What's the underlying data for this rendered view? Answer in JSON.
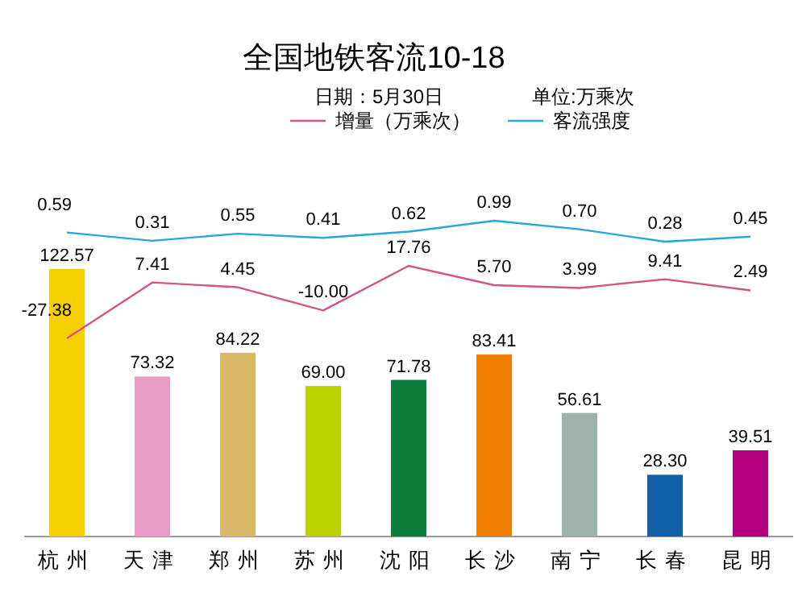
{
  "chart_data": [
    {
      "type": "bar",
      "annotations": [
        "日期：5月30日",
        "单位:万乘次"
      ],
      "categories": [
        "杭州",
        "天津",
        "郑州",
        "苏州",
        "沈阳",
        "长沙",
        "南宁",
        "长春",
        "昆明"
      ],
      "values": [
        122.57,
        73.32,
        84.22,
        69.0,
        71.78,
        83.41,
        56.61,
        28.3,
        39.51
      ],
      "value_labels": [
        "122.57",
        "73.32",
        "84.22",
        "69.00",
        "71.78",
        "83.41",
        "56.61",
        "28.30",
        "39.51"
      ],
      "colors": [
        "#f5d000",
        "#e99cc3",
        "#d9b86a",
        "#bcd200",
        "#0a7e3a",
        "#ee7d00",
        "#9fb1ad",
        "#1060a8",
        "#b5007e"
      ]
    },
    {
      "type": "line",
      "categories": [
        null,
        null,
        null,
        null,
        null,
        null,
        null,
        null,
        null
      ],
      "legend": "top",
      "series": [
        {
          "name": "增量（万乘次）",
          "color": "#d0558a",
          "values": [
            -27.38,
            7.41,
            4.45,
            -10.0,
            17.76,
            5.7,
            3.99,
            9.41,
            2.49
          ],
          "value_labels": [
            "-27.38",
            "7.41",
            "4.45",
            "-10.00",
            "17.76",
            "5.70",
            "3.99",
            "9.41",
            "2.49"
          ]
        }
      ]
    },
    {
      "type": "line",
      "title": "全国地铁客流10-18",
      "categories": [
        null,
        null,
        null,
        null,
        null,
        null,
        null,
        null,
        null
      ],
      "legend": "top",
      "series": [
        {
          "name": "客流强度",
          "color": "#2aa7d8",
          "values": [
            0.59,
            0.31,
            0.55,
            0.41,
            0.62,
            0.99,
            0.7,
            0.28,
            0.45
          ],
          "value_labels": [
            "0.59",
            "0.31",
            "0.55",
            "0.41",
            "0.62",
            "0.99",
            "0.70",
            "0.28",
            "0.45"
          ]
        }
      ]
    }
  ]
}
